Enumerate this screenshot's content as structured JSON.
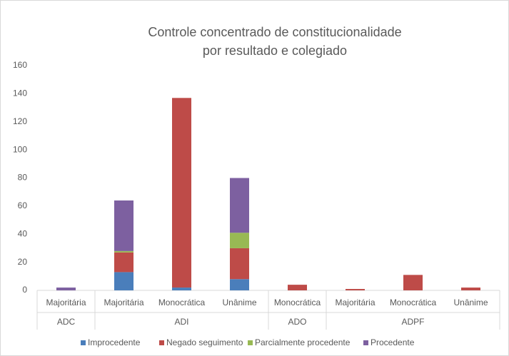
{
  "chart_data": {
    "type": "stacked-bar",
    "title": [
      "Controle concentrado de constitucionalidade",
      "por resultado e colegiado"
    ],
    "groups": [
      {
        "name": "ADC",
        "categories": [
          "Majoritária"
        ]
      },
      {
        "name": "ADI",
        "categories": [
          "Majoritária",
          "Monocrática",
          "Unânime"
        ]
      },
      {
        "name": "ADO",
        "categories": [
          "Monocrática"
        ]
      },
      {
        "name": "ADPF",
        "categories": [
          "Majoritária",
          "Monocrática",
          "Unânime"
        ]
      }
    ],
    "series": [
      {
        "name": "Improcedente",
        "color": "#4a7ebb",
        "values": [
          0,
          13,
          2,
          8,
          0,
          0,
          0,
          0
        ]
      },
      {
        "name": "Negado seguimento",
        "color": "#be4b48",
        "values": [
          0,
          14,
          135,
          22,
          4,
          1,
          11,
          2
        ]
      },
      {
        "name": "Parcialmente procedente",
        "color": "#98b954",
        "values": [
          0,
          1,
          0,
          11,
          0,
          0,
          0,
          0
        ]
      },
      {
        "name": "Procedente",
        "color": "#7d60a0",
        "values": [
          2,
          36,
          0,
          39,
          0,
          0,
          0,
          0
        ]
      }
    ],
    "ylim": [
      0,
      160
    ],
    "yticks": [
      0,
      20,
      40,
      60,
      80,
      100,
      120,
      140,
      160
    ],
    "grid": false,
    "legend": "bottom"
  }
}
